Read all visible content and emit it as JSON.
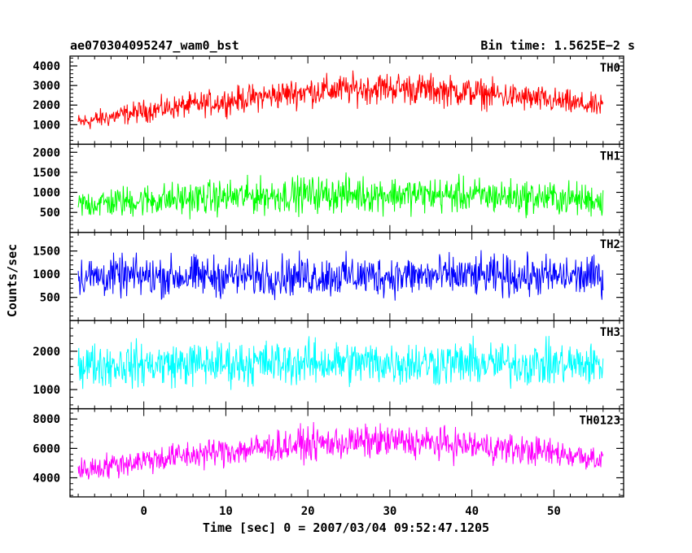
{
  "chart_data": {
    "type": "line",
    "title": "ae070304095247_wam0_bst",
    "subtitle": "Bin time: 1.5625E−2 s",
    "xlabel": "Time [sec] 0 = 2007/03/04 09:52:47.1205",
    "ylabel": "Counts/sec",
    "xlim": [
      -9,
      58.5
    ],
    "data_x_range": [
      -8,
      56
    ],
    "x_ticks": [
      0,
      10,
      20,
      30,
      40,
      50
    ],
    "grid": false,
    "panels": [
      {
        "name": "TH0",
        "color": "#ff0000",
        "ylim": [
          0,
          4500
        ],
        "y_ticks": [
          1000,
          2000,
          3000,
          4000
        ],
        "x": [
          -8,
          0,
          10,
          20,
          30,
          40,
          50,
          56
        ],
        "mean": [
          1100,
          1700,
          2200,
          2700,
          2900,
          2650,
          2200,
          1900
        ],
        "spread": [
          450,
          550,
          650,
          750,
          800,
          750,
          650,
          550
        ]
      },
      {
        "name": "TH1",
        "color": "#00ff00",
        "ylim": [
          0,
          2200
        ],
        "y_ticks": [
          500,
          1000,
          1500,
          2000
        ],
        "x": [
          -8,
          0,
          10,
          20,
          30,
          40,
          50,
          56
        ],
        "mean": [
          700,
          800,
          880,
          950,
          950,
          920,
          860,
          800
        ],
        "spread": [
          350,
          400,
          420,
          440,
          440,
          430,
          410,
          400
        ]
      },
      {
        "name": "TH2",
        "color": "#0000ff",
        "ylim": [
          0,
          1900
        ],
        "y_ticks": [
          500,
          1000,
          1500
        ],
        "x": [
          -8,
          0,
          10,
          20,
          30,
          40,
          50,
          56
        ],
        "mean": [
          950,
          950,
          960,
          960,
          960,
          960,
          950,
          950
        ],
        "spread": [
          420,
          430,
          430,
          430,
          430,
          430,
          430,
          420
        ]
      },
      {
        "name": "TH3",
        "color": "#00ffff",
        "ylim": [
          500,
          2800
        ],
        "y_ticks": [
          1000,
          2000
        ],
        "x": [
          -8,
          0,
          10,
          20,
          30,
          40,
          50,
          56
        ],
        "mean": [
          1650,
          1650,
          1680,
          1700,
          1700,
          1680,
          1660,
          1650
        ],
        "spread": [
          550,
          560,
          570,
          570,
          570,
          570,
          560,
          550
        ]
      },
      {
        "name": "TH0123",
        "color": "#ff00ff",
        "ylim": [
          2700,
          8700
        ],
        "y_ticks": [
          4000,
          6000,
          8000
        ],
        "x": [
          -8,
          0,
          10,
          20,
          30,
          40,
          50,
          56
        ],
        "mean": [
          4500,
          5200,
          5800,
          6300,
          6500,
          6200,
          5700,
          5300
        ],
        "spread": [
          800,
          900,
          1000,
          1100,
          1100,
          1050,
          950,
          850
        ]
      }
    ]
  }
}
